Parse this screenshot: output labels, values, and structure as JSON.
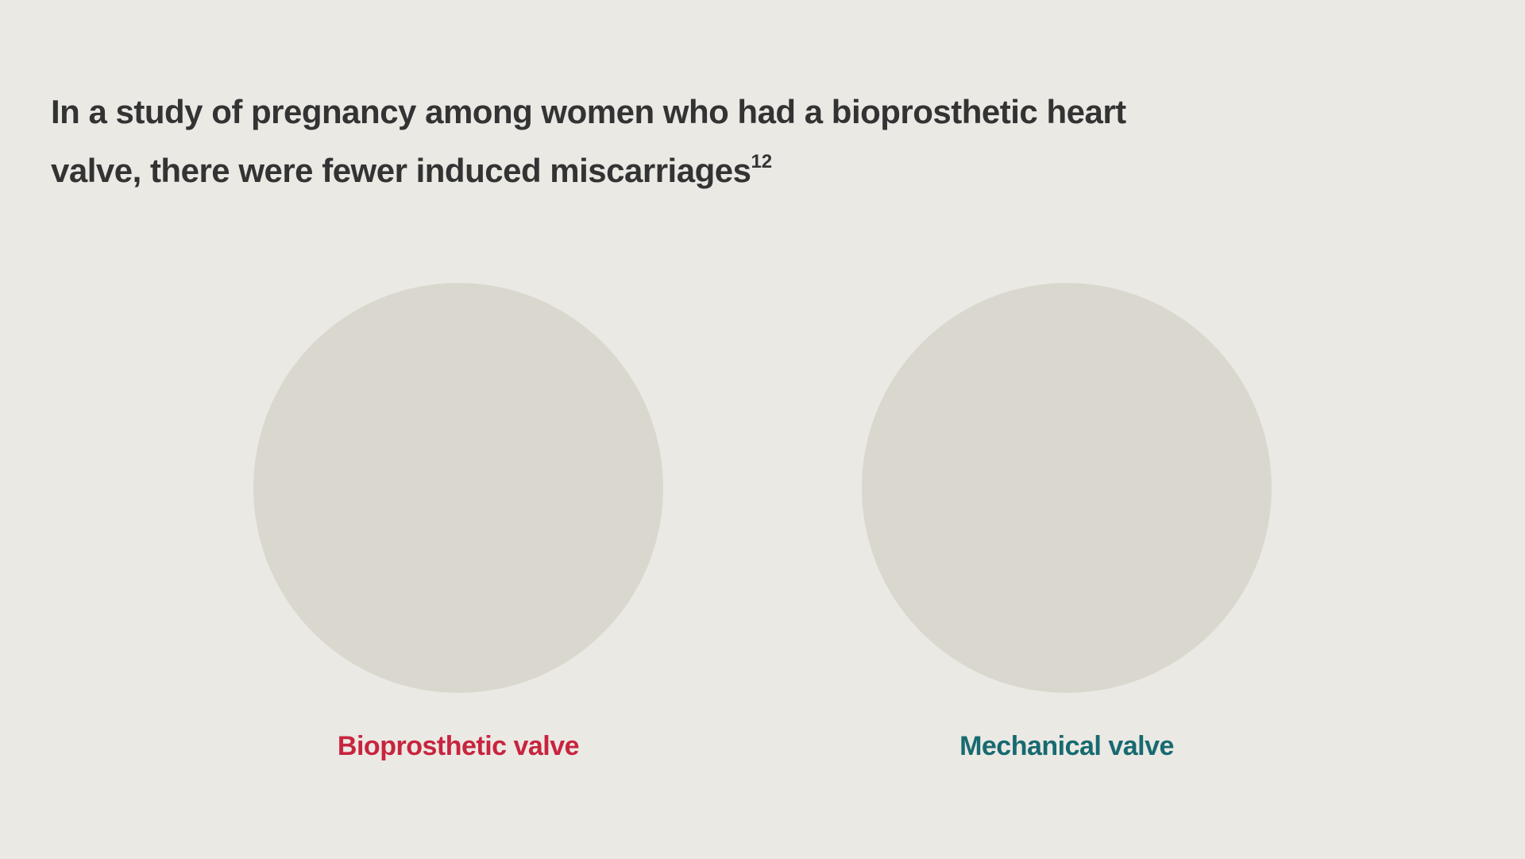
{
  "header": {
    "title_lines": [
      "In a study of pregnancy among women who had a bioprosthetic heart",
      "valve, there were fewer induced miscarriages"
    ],
    "reference": "12"
  },
  "panels": [
    {
      "label": "Bioprosthetic valve",
      "color": "#c8243f"
    },
    {
      "label": "Mechanical valve",
      "color": "#176a70"
    }
  ]
}
